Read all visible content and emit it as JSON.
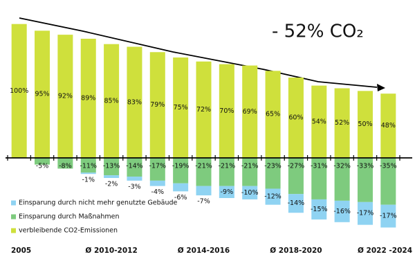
{
  "chart_data": {
    "type": "bar",
    "annotation": "- 52% CO₂",
    "categories": [
      "2005",
      null,
      null,
      null,
      "Ø 2010-2012",
      null,
      null,
      null,
      "Ø 2014-2016",
      null,
      null,
      null,
      "Ø 2018-2020",
      null,
      null,
      null,
      "Ø 2022 -2024"
    ],
    "series": [
      {
        "name": "Einsparung durch nicht mehr genutzte Gebäude",
        "color": "#8fd3f2",
        "stack": "below",
        "values": [
          null,
          null,
          null,
          -1,
          -2,
          -3,
          -4,
          -6,
          -7,
          -9,
          -10,
          -12,
          -14,
          -15,
          -16,
          -17,
          -17
        ],
        "value_labels": [
          null,
          null,
          null,
          "-1%",
          "-2%",
          "-3%",
          "-4%",
          "-6%",
          "-7%",
          "-9%",
          "-10%",
          "-12%",
          "-14%",
          "-15%",
          "-16%",
          "-17%",
          "-17%"
        ]
      },
      {
        "name": "Einsparung durch Maßnahmen",
        "color": "#7ecb7e",
        "stack": "axis",
        "values": [
          null,
          -5,
          -8,
          -11,
          -13,
          -14,
          -17,
          -19,
          -21,
          -21,
          -21,
          -23,
          -27,
          -31,
          -32,
          -33,
          -35
        ],
        "value_labels": [
          null,
          "-5%",
          "-8%",
          "-11%",
          "-13%",
          "-14%",
          "-17%",
          "-19%",
          "-21%",
          "-21%",
          "-21%",
          "-23%",
          "-27%",
          "-31%",
          "-32%",
          "-33%",
          "-35%"
        ]
      },
      {
        "name": "verbleibende CO2-Emissionen",
        "color": "#cfe03c",
        "stack": "axis",
        "values": [
          100,
          95,
          92,
          89,
          85,
          83,
          79,
          75,
          72,
          70,
          69,
          65,
          60,
          54,
          52,
          50,
          48
        ],
        "value_labels": [
          "100%",
          "95%",
          "92%",
          "89%",
          "85%",
          "83%",
          "79%",
          "75%",
          "72%",
          "70%",
          "69%",
          "65%",
          "60%",
          "54%",
          "52%",
          "50%",
          "48%"
        ]
      }
    ],
    "ylim": [
      -60,
      105
    ]
  }
}
